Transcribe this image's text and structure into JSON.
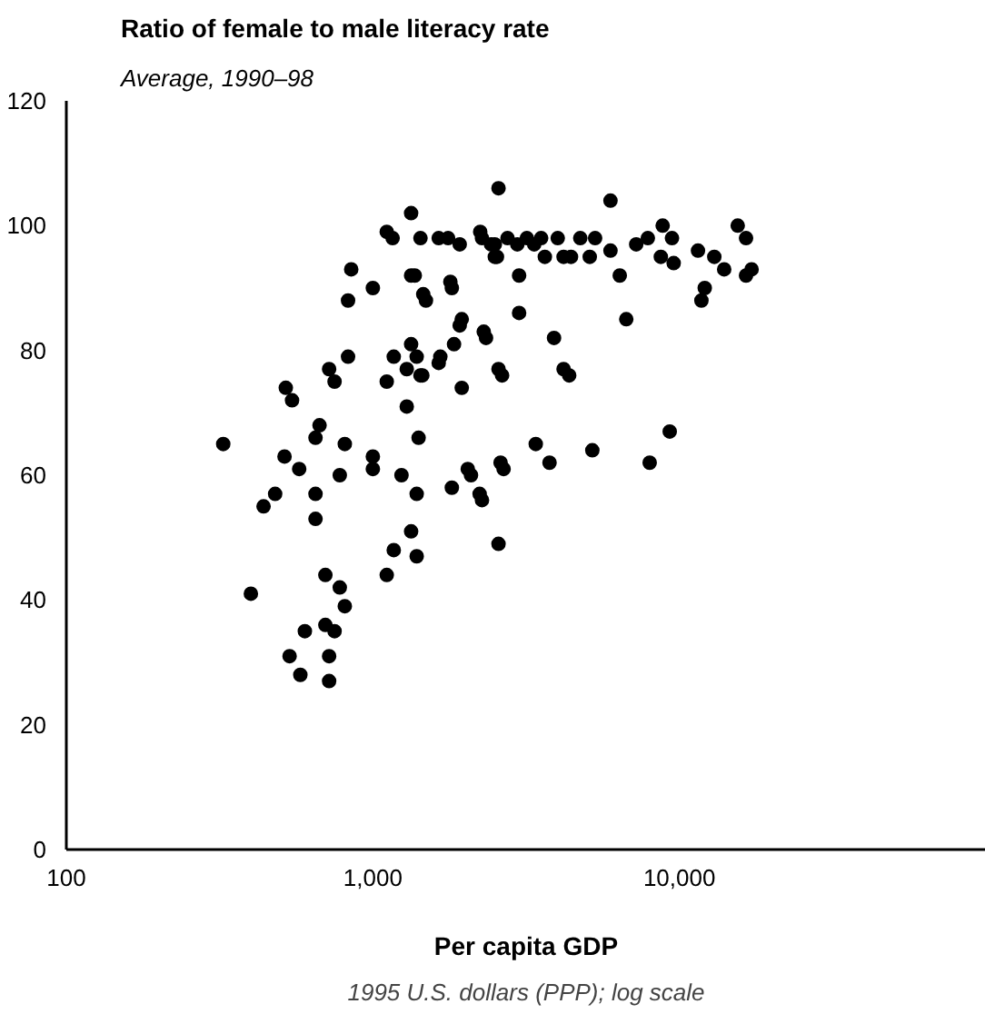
{
  "chart_data": {
    "type": "scatter",
    "title": "Ratio of female to male literacy rate",
    "subtitle": "Average, 1990–98",
    "xlabel": "Per capita GDP",
    "annotations": [
      "1995 U.S. dollars (PPP); log scale"
    ],
    "log": "x",
    "marker": "circle",
    "grid": false,
    "xlim": [
      100,
      100000
    ],
    "xticks": [
      100,
      {
        "value": 1000,
        "label": "1,000"
      },
      {
        "value": 10000,
        "label": "10,000"
      }
    ],
    "ylim": [
      0,
      120
    ],
    "yticks": [
      0,
      20,
      40,
      60,
      80,
      100,
      120
    ],
    "series": [
      {
        "color": "#000000",
        "x": [
          1333,
          1110,
          1160,
          1430,
          1640,
          1760,
          1920,
          2240,
          2430,
          2500,
          2570,
          850,
          1000,
          1333,
          1460,
          1790,
          830,
          1950,
          1920,
          2300,
          1840,
          1333,
          1170,
          1390,
          1290,
          1450,
          1660,
          830,
          720,
          750,
          520,
          545,
          1110,
          1950,
          2570,
          1290,
          670,
          650,
          325,
          810,
          1410,
          515,
          575,
          780,
          1000,
          1000,
          1240,
          2040,
          2610,
          1810,
          1390,
          2230,
          480,
          440,
          650,
          650,
          400,
          700,
          780,
          810,
          1110,
          1170,
          1333,
          1390,
          600,
          700,
          750,
          535,
          580,
          720,
          720,
          5960,
          2270,
          2500,
          2540,
          2750,
          2960,
          3180,
          3360,
          3540,
          3640,
          4010,
          4190,
          4430,
          4750,
          5100,
          5310,
          5960,
          7230,
          7890,
          8820,
          9460,
          8700,
          9580,
          11500,
          13000,
          14000,
          15500,
          16500,
          17200,
          16500,
          12100,
          11800,
          1370,
          1490,
          1810,
          3000,
          6390,
          3000,
          6710,
          2340,
          3900,
          1640,
          4190,
          4370,
          2640,
          1430,
          9300,
          8000,
          3400,
          3770,
          5200,
          2670,
          2090,
          2270,
          2570
        ],
        "values": [
          102,
          99,
          98,
          98,
          98,
          98,
          97,
          99,
          97,
          95,
          106,
          93,
          90,
          92,
          89,
          91,
          88,
          85,
          84,
          83,
          81,
          81,
          79,
          79,
          77,
          76,
          79,
          79,
          77,
          75,
          74,
          72,
          75,
          74,
          77,
          71,
          68,
          66,
          65,
          65,
          66,
          63,
          61,
          60,
          63,
          61,
          60,
          61,
          62,
          58,
          57,
          57,
          57,
          55,
          57,
          53,
          41,
          44,
          42,
          39,
          44,
          48,
          51,
          47,
          35,
          36,
          35,
          31,
          28,
          31,
          27,
          104,
          98,
          97,
          95,
          98,
          97,
          98,
          97,
          98,
          95,
          98,
          95,
          95,
          98,
          95,
          98,
          96,
          97,
          98,
          100,
          98,
          95,
          94,
          96,
          95,
          93,
          100,
          98,
          93,
          92,
          90,
          88,
          92,
          88,
          90,
          92,
          92,
          86,
          85,
          82,
          82,
          78,
          77,
          76,
          76,
          76,
          67,
          62,
          65,
          62,
          64,
          61,
          60,
          56,
          49
        ]
      }
    ]
  }
}
